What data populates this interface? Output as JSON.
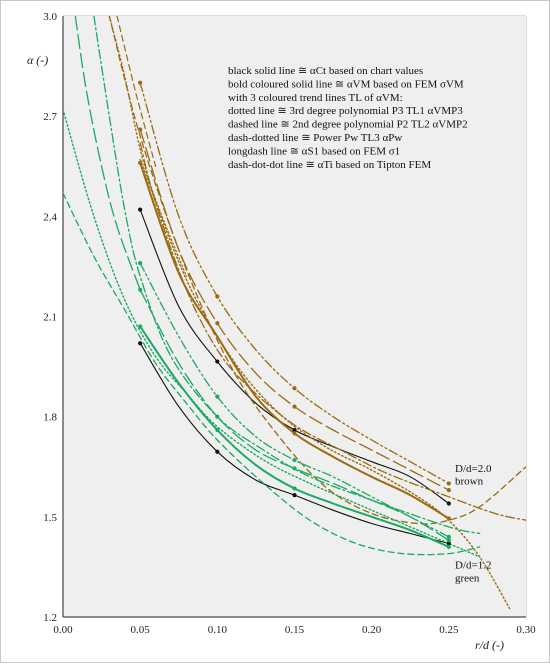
{
  "chart_data": {
    "type": "line",
    "xlabel": "r/d (-)",
    "ylabel": "α (-)",
    "xlim": [
      0.0,
      0.3
    ],
    "ylim": [
      1.2,
      3.0
    ],
    "xticks": [
      "0.00",
      "0.05",
      "0.10",
      "0.15",
      "0.20",
      "0.25",
      "0.30"
    ],
    "yticks": [
      "1.2",
      "1.5",
      "1.8",
      "2.1",
      "2.4",
      "2.7",
      "3.0"
    ],
    "grid": true,
    "legend_lines": [
      "black solid line ≅ αCt based on chart values",
      "bold coloured solid line ≅ αVM based on FEM σVM",
      "with 3 coloured trend lines TL of αVM:",
      "dotted line ≅ 3rd degree polynomial  P3 TL1 αVMP3",
      "dashed line ≅ 2nd degree polynomial  P2 TL2 αVMP2",
      "dash-dotted line ≅ Power Pw TL3 αPw",
      "longdash line ≅ αS1 based on FEM σ1",
      "dash-dot-dot  line ≅ αTi based on Tipton FEM"
    ],
    "annotations": [
      {
        "text": "D/d=2.0",
        "x": 0.254,
        "y": 1.635
      },
      {
        "text": "brown",
        "x": 0.254,
        "y": 1.597
      },
      {
        "text": "D/d=1.2",
        "x": 0.254,
        "y": 1.345
      },
      {
        "text": "green",
        "x": 0.254,
        "y": 1.307
      }
    ],
    "colors": {
      "brown": "#9a6b12",
      "green": "#1aaa60",
      "black": "#111111"
    },
    "series": [
      {
        "group": "D/d=2.0",
        "kind": "chart-black",
        "style": "solid",
        "color": "#111111",
        "width": 1.1,
        "x": [
          0.05,
          0.075,
          0.1,
          0.125,
          0.15,
          0.175,
          0.2,
          0.225,
          0.25
        ],
        "y": [
          2.42,
          2.13,
          1.965,
          1.84,
          1.76,
          1.71,
          1.665,
          1.62,
          1.54
        ]
      },
      {
        "group": "D/d=2.0",
        "kind": "fem-vm",
        "style": "solid",
        "color": "#9a6b12",
        "width": 2.0,
        "x": [
          0.05,
          0.075,
          0.1,
          0.125,
          0.15,
          0.175,
          0.2,
          0.225,
          0.25
        ],
        "y": [
          2.56,
          2.23,
          2.04,
          1.86,
          1.75,
          1.68,
          1.62,
          1.565,
          1.495
        ]
      },
      {
        "group": "D/d=2.0",
        "kind": "p3",
        "style": "dotted",
        "color": "#9a6b12",
        "width": 1.4,
        "x": [
          0.05,
          0.08,
          0.11,
          0.14,
          0.17,
          0.2,
          0.23,
          0.25,
          0.27,
          0.29
        ],
        "y": [
          2.57,
          2.21,
          1.97,
          1.81,
          1.71,
          1.64,
          1.56,
          1.49,
          1.38,
          1.22
        ]
      },
      {
        "group": "D/d=2.0",
        "kind": "p2",
        "style": "dashed",
        "color": "#9a6b12",
        "width": 1.3,
        "x": [
          0.03,
          0.05,
          0.08,
          0.11,
          0.14,
          0.17,
          0.2,
          0.23,
          0.25,
          0.27,
          0.3
        ],
        "y": [
          3.0,
          2.64,
          2.24,
          1.94,
          1.74,
          1.59,
          1.51,
          1.48,
          1.49,
          1.53,
          1.65
        ]
      },
      {
        "group": "D/d=2.0",
        "kind": "power",
        "style": "dashdot",
        "color": "#9a6b12",
        "width": 1.3,
        "x": [
          0.05,
          0.06,
          0.08,
          0.1,
          0.12,
          0.15,
          0.18,
          0.21,
          0.25,
          0.28,
          0.3
        ],
        "y": [
          2.62,
          2.44,
          2.18,
          2.0,
          1.89,
          1.775,
          1.7,
          1.63,
          1.56,
          1.51,
          1.49
        ]
      },
      {
        "group": "D/d=2.0",
        "kind": "fem-s1",
        "style": "longdash",
        "color": "#9a6b12",
        "width": 1.3,
        "x": [
          0.05,
          0.075,
          0.1,
          0.125,
          0.15,
          0.175,
          0.2,
          0.225,
          0.25
        ],
        "y": [
          2.66,
          2.3,
          2.08,
          1.93,
          1.83,
          1.76,
          1.7,
          1.64,
          1.58
        ]
      },
      {
        "group": "D/d=2.0",
        "kind": "tipton",
        "style": "dashdotdot",
        "color": "#9a6b12",
        "width": 1.3,
        "x": [
          0.05,
          0.075,
          0.1,
          0.125,
          0.15,
          0.175,
          0.2,
          0.225,
          0.25
        ],
        "y": [
          2.8,
          2.4,
          2.16,
          2.0,
          1.885,
          1.8,
          1.73,
          1.665,
          1.6
        ]
      },
      {
        "group": "D/d=2.0",
        "kind": "p3-upper",
        "style": "dotted",
        "color": "#9a6b12",
        "width": 1.3,
        "x": [
          0.03,
          0.04,
          0.05,
          0.06,
          0.08
        ],
        "y": [
          3.0,
          2.82,
          2.6,
          2.45,
          2.22
        ]
      },
      {
        "group": "D/d=2.0",
        "kind": "p2-upper",
        "style": "dashed",
        "color": "#9a6b12",
        "width": 1.2,
        "x": [
          0.035,
          0.045,
          0.05,
          0.06
        ],
        "y": [
          3.0,
          2.81,
          2.72,
          2.55
        ]
      },
      {
        "group": "D/d=1.2",
        "kind": "chart-black",
        "style": "solid",
        "color": "#111111",
        "width": 1.1,
        "x": [
          0.05,
          0.075,
          0.1,
          0.125,
          0.15,
          0.175,
          0.2,
          0.225,
          0.25
        ],
        "y": [
          2.02,
          1.83,
          1.695,
          1.61,
          1.565,
          1.52,
          1.48,
          1.45,
          1.42
        ]
      },
      {
        "group": "D/d=1.2",
        "kind": "fem-vm",
        "style": "solid",
        "color": "#1aaa60",
        "width": 2.0,
        "x": [
          0.05,
          0.075,
          0.1,
          0.125,
          0.15,
          0.175,
          0.2,
          0.225,
          0.25
        ],
        "y": [
          2.07,
          1.9,
          1.76,
          1.655,
          1.585,
          1.54,
          1.5,
          1.46,
          1.41
        ]
      },
      {
        "group": "D/d=1.2",
        "kind": "p3",
        "style": "dotted",
        "color": "#1aaa60",
        "width": 1.4,
        "x": [
          0.0,
          0.02,
          0.04,
          0.06,
          0.08,
          0.1,
          0.13,
          0.16,
          0.19,
          0.22,
          0.25,
          0.27
        ],
        "y": [
          2.72,
          2.4,
          2.15,
          1.98,
          1.87,
          1.77,
          1.67,
          1.6,
          1.54,
          1.48,
          1.42,
          1.38
        ]
      },
      {
        "group": "D/d=1.2",
        "kind": "p2",
        "style": "dashed",
        "color": "#1aaa60",
        "width": 1.3,
        "x": [
          0.0,
          0.02,
          0.04,
          0.06,
          0.08,
          0.1,
          0.13,
          0.16,
          0.19,
          0.22,
          0.25,
          0.27
        ],
        "y": [
          2.47,
          2.28,
          2.12,
          1.96,
          1.84,
          1.73,
          1.6,
          1.49,
          1.42,
          1.39,
          1.39,
          1.41
        ]
      },
      {
        "group": "D/d=1.2",
        "kind": "power",
        "style": "dashdot",
        "color": "#1aaa60",
        "width": 1.3,
        "x": [
          0.02,
          0.03,
          0.04,
          0.05,
          0.07,
          0.1,
          0.13,
          0.16,
          0.2,
          0.25,
          0.27
        ],
        "y": [
          3.0,
          2.7,
          2.42,
          2.22,
          1.98,
          1.8,
          1.7,
          1.62,
          1.55,
          1.47,
          1.45
        ]
      },
      {
        "group": "D/d=1.2",
        "kind": "fem-s1",
        "style": "longdash",
        "color": "#1aaa60",
        "width": 1.3,
        "x": [
          0.05,
          0.075,
          0.1,
          0.125,
          0.15,
          0.175,
          0.2,
          0.225,
          0.25
        ],
        "y": [
          2.18,
          1.96,
          1.8,
          1.7,
          1.645,
          1.6,
          1.55,
          1.5,
          1.43
        ]
      },
      {
        "group": "D/d=1.2",
        "kind": "tipton",
        "style": "dashdotdot",
        "color": "#1aaa60",
        "width": 1.3,
        "x": [
          0.05,
          0.075,
          0.1,
          0.125,
          0.15,
          0.175,
          0.2,
          0.225,
          0.25
        ],
        "y": [
          2.26,
          2.04,
          1.86,
          1.74,
          1.67,
          1.62,
          1.56,
          1.5,
          1.44
        ]
      },
      {
        "group": "D/d=1.2",
        "kind": "longdash-upper",
        "style": "longdash",
        "color": "#1aaa60",
        "width": 1.3,
        "x": [
          0.008,
          0.015,
          0.025,
          0.035,
          0.05
        ],
        "y": [
          3.0,
          2.78,
          2.55,
          2.37,
          2.18
        ]
      }
    ],
    "markers": [
      {
        "x": 0.05,
        "y": 2.42,
        "color": "#111111"
      },
      {
        "x": 0.1,
        "y": 1.965,
        "color": "#111111"
      },
      {
        "x": 0.15,
        "y": 1.76,
        "color": "#111111"
      },
      {
        "x": 0.25,
        "y": 1.54,
        "color": "#111111"
      },
      {
        "x": 0.05,
        "y": 2.02,
        "color": "#111111"
      },
      {
        "x": 0.1,
        "y": 1.695,
        "color": "#111111"
      },
      {
        "x": 0.15,
        "y": 1.565,
        "color": "#111111"
      },
      {
        "x": 0.25,
        "y": 1.42,
        "color": "#111111"
      },
      {
        "x": 0.05,
        "y": 2.8,
        "color": "#9a6b12"
      },
      {
        "x": 0.05,
        "y": 2.66,
        "color": "#9a6b12"
      },
      {
        "x": 0.05,
        "y": 2.56,
        "color": "#9a6b12"
      },
      {
        "x": 0.1,
        "y": 2.16,
        "color": "#9a6b12"
      },
      {
        "x": 0.1,
        "y": 2.08,
        "color": "#9a6b12"
      },
      {
        "x": 0.15,
        "y": 1.885,
        "color": "#9a6b12"
      },
      {
        "x": 0.15,
        "y": 1.83,
        "color": "#9a6b12"
      },
      {
        "x": 0.15,
        "y": 1.75,
        "color": "#9a6b12"
      },
      {
        "x": 0.25,
        "y": 1.6,
        "color": "#9a6b12"
      },
      {
        "x": 0.25,
        "y": 1.58,
        "color": "#9a6b12"
      },
      {
        "x": 0.25,
        "y": 1.495,
        "color": "#9a6b12"
      },
      {
        "x": 0.05,
        "y": 2.26,
        "color": "#1aaa60"
      },
      {
        "x": 0.05,
        "y": 2.18,
        "color": "#1aaa60"
      },
      {
        "x": 0.05,
        "y": 2.07,
        "color": "#1aaa60"
      },
      {
        "x": 0.1,
        "y": 1.86,
        "color": "#1aaa60"
      },
      {
        "x": 0.1,
        "y": 1.8,
        "color": "#1aaa60"
      },
      {
        "x": 0.1,
        "y": 1.76,
        "color": "#1aaa60"
      },
      {
        "x": 0.15,
        "y": 1.67,
        "color": "#1aaa60"
      },
      {
        "x": 0.15,
        "y": 1.645,
        "color": "#1aaa60"
      },
      {
        "x": 0.15,
        "y": 1.585,
        "color": "#1aaa60"
      },
      {
        "x": 0.25,
        "y": 1.44,
        "color": "#1aaa60"
      },
      {
        "x": 0.25,
        "y": 1.43,
        "color": "#1aaa60"
      },
      {
        "x": 0.25,
        "y": 1.41,
        "color": "#1aaa60"
      }
    ]
  }
}
